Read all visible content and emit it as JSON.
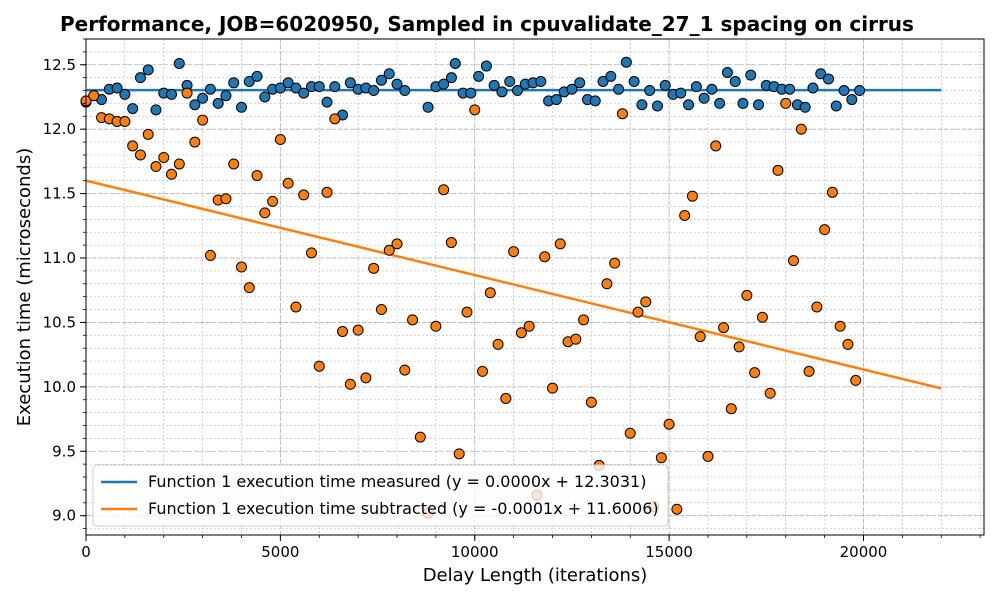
{
  "chart_data": {
    "type": "scatter",
    "title": "Performance, JOB=6020950, Sampled in cpuvalidate_27_1 spacing on cirrus",
    "xlabel": "Delay Length (iterations)",
    "ylabel": "Execution time (microseconds)",
    "xlim": [
      0,
      23100
    ],
    "ylim": [
      8.85,
      12.7
    ],
    "x_ticks": [
      0,
      5000,
      10000,
      15000,
      20000
    ],
    "y_ticks": [
      9.0,
      9.5,
      10.0,
      10.5,
      11.0,
      11.5,
      12.0,
      12.5
    ],
    "grid": true,
    "minor_grid": true,
    "legend_position": "lower-left",
    "series": [
      {
        "name": "Function 1 execution time measured (y = 0.0000x + 12.3031)",
        "color": "#1f77b4",
        "fit": {
          "slope": 0.0,
          "intercept": 12.3031,
          "x_range": [
            0,
            22000
          ]
        },
        "points": [
          [
            0,
            12.21
          ],
          [
            200,
            12.26
          ],
          [
            400,
            12.23
          ],
          [
            600,
            12.31
          ],
          [
            800,
            12.32
          ],
          [
            1000,
            12.27
          ],
          [
            1200,
            12.16
          ],
          [
            1400,
            12.4
          ],
          [
            1600,
            12.46
          ],
          [
            1800,
            12.15
          ],
          [
            2000,
            12.28
          ],
          [
            2200,
            12.27
          ],
          [
            2400,
            12.51
          ],
          [
            2600,
            12.34
          ],
          [
            2800,
            12.19
          ],
          [
            3000,
            12.24
          ],
          [
            3200,
            12.31
          ],
          [
            3400,
            12.2
          ],
          [
            3600,
            12.26
          ],
          [
            3800,
            12.36
          ],
          [
            4000,
            12.17
          ],
          [
            4200,
            12.37
          ],
          [
            4400,
            12.41
          ],
          [
            4600,
            12.25
          ],
          [
            4800,
            12.31
          ],
          [
            5000,
            12.32
          ],
          [
            5200,
            12.36
          ],
          [
            5400,
            12.32
          ],
          [
            5600,
            12.28
          ],
          [
            5800,
            12.33
          ],
          [
            6000,
            12.33
          ],
          [
            6200,
            12.21
          ],
          [
            6400,
            12.33
          ],
          [
            6600,
            12.11
          ],
          [
            6800,
            12.36
          ],
          [
            7000,
            12.31
          ],
          [
            7200,
            12.32
          ],
          [
            7400,
            12.3
          ],
          [
            7600,
            12.38
          ],
          [
            7800,
            12.43
          ],
          [
            8000,
            12.35
          ],
          [
            8200,
            12.3
          ],
          [
            8800,
            12.17
          ],
          [
            9000,
            12.33
          ],
          [
            9200,
            12.35
          ],
          [
            9400,
            12.4
          ],
          [
            9500,
            12.51
          ],
          [
            9700,
            12.28
          ],
          [
            9900,
            12.28
          ],
          [
            10100,
            12.41
          ],
          [
            10300,
            12.49
          ],
          [
            10500,
            12.34
          ],
          [
            10700,
            12.29
          ],
          [
            10900,
            12.37
          ],
          [
            11100,
            12.3
          ],
          [
            11300,
            12.35
          ],
          [
            11500,
            12.36
          ],
          [
            11700,
            12.37
          ],
          [
            11900,
            12.22
          ],
          [
            12100,
            12.23
          ],
          [
            12300,
            12.29
          ],
          [
            12500,
            12.31
          ],
          [
            12700,
            12.36
          ],
          [
            12900,
            12.23
          ],
          [
            13100,
            12.22
          ],
          [
            13300,
            12.37
          ],
          [
            13500,
            12.41
          ],
          [
            13700,
            12.31
          ],
          [
            13900,
            12.52
          ],
          [
            14100,
            12.37
          ],
          [
            14300,
            12.19
          ],
          [
            14500,
            12.3
          ],
          [
            14700,
            12.18
          ],
          [
            14900,
            12.34
          ],
          [
            15100,
            12.27
          ],
          [
            15300,
            12.28
          ],
          [
            15500,
            12.19
          ],
          [
            15700,
            12.33
          ],
          [
            15900,
            12.24
          ],
          [
            16100,
            12.31
          ],
          [
            16300,
            12.2
          ],
          [
            16500,
            12.44
          ],
          [
            16700,
            12.37
          ],
          [
            16900,
            12.2
          ],
          [
            17100,
            12.42
          ],
          [
            17300,
            12.19
          ],
          [
            17500,
            12.34
          ],
          [
            17700,
            12.33
          ],
          [
            17900,
            12.31
          ],
          [
            18100,
            12.31
          ],
          [
            18300,
            12.19
          ],
          [
            18500,
            12.17
          ],
          [
            18700,
            12.32
          ],
          [
            18900,
            12.43
          ],
          [
            19100,
            12.39
          ],
          [
            19300,
            12.18
          ],
          [
            19500,
            12.3
          ],
          [
            19700,
            12.23
          ],
          [
            19900,
            12.3
          ]
        ]
      },
      {
        "name": "Function 1 execution time subtracted (y = -0.0001x + 11.6006)",
        "color": "#ff7f0e",
        "fit": {
          "slope": -7.33e-05,
          "intercept": 11.6006,
          "x_range": [
            0,
            22000
          ]
        },
        "points": [
          [
            0,
            12.22
          ],
          [
            200,
            12.26
          ],
          [
            400,
            12.09
          ],
          [
            600,
            12.08
          ],
          [
            800,
            12.06
          ],
          [
            1000,
            12.06
          ],
          [
            1200,
            11.87
          ],
          [
            1400,
            11.8
          ],
          [
            1600,
            11.96
          ],
          [
            1800,
            11.71
          ],
          [
            2000,
            11.78
          ],
          [
            2200,
            11.65
          ],
          [
            2400,
            11.73
          ],
          [
            2600,
            12.28
          ],
          [
            2800,
            11.9
          ],
          [
            3000,
            12.07
          ],
          [
            3200,
            11.02
          ],
          [
            3400,
            11.45
          ],
          [
            3600,
            11.46
          ],
          [
            3800,
            11.73
          ],
          [
            4000,
            10.93
          ],
          [
            4200,
            10.77
          ],
          [
            4400,
            11.64
          ],
          [
            4600,
            11.35
          ],
          [
            4800,
            11.44
          ],
          [
            5000,
            11.92
          ],
          [
            5200,
            11.58
          ],
          [
            5400,
            10.62
          ],
          [
            5600,
            11.49
          ],
          [
            5800,
            11.04
          ],
          [
            6000,
            10.16
          ],
          [
            6200,
            11.51
          ],
          [
            6400,
            12.08
          ],
          [
            6600,
            10.43
          ],
          [
            6800,
            10.02
          ],
          [
            7000,
            10.44
          ],
          [
            7200,
            10.07
          ],
          [
            7400,
            10.92
          ],
          [
            7600,
            10.6
          ],
          [
            7800,
            11.06
          ],
          [
            8000,
            11.11
          ],
          [
            8200,
            10.13
          ],
          [
            8400,
            10.52
          ],
          [
            8600,
            9.61
          ],
          [
            8800,
            9.02
          ],
          [
            9000,
            10.47
          ],
          [
            9200,
            11.53
          ],
          [
            9400,
            11.12
          ],
          [
            9600,
            9.48
          ],
          [
            9800,
            10.58
          ],
          [
            10000,
            12.15
          ],
          [
            10200,
            10.12
          ],
          [
            10400,
            10.73
          ],
          [
            10600,
            10.33
          ],
          [
            10800,
            9.91
          ],
          [
            11000,
            11.05
          ],
          [
            11200,
            10.42
          ],
          [
            11400,
            10.47
          ],
          [
            11600,
            9.16
          ],
          [
            11800,
            11.01
          ],
          [
            12000,
            9.99
          ],
          [
            12200,
            11.11
          ],
          [
            12400,
            10.35
          ],
          [
            12600,
            10.37
          ],
          [
            12800,
            10.52
          ],
          [
            13000,
            9.88
          ],
          [
            13200,
            9.39
          ],
          [
            13400,
            10.8
          ],
          [
            13600,
            10.96
          ],
          [
            13800,
            12.12
          ],
          [
            14000,
            9.64
          ],
          [
            14200,
            10.58
          ],
          [
            14400,
            10.66
          ],
          [
            14600,
            9.07
          ],
          [
            14800,
            9.45
          ],
          [
            15000,
            9.71
          ],
          [
            15200,
            9.05
          ],
          [
            15400,
            11.33
          ],
          [
            15600,
            11.48
          ],
          [
            15800,
            10.39
          ],
          [
            16000,
            9.46
          ],
          [
            16200,
            11.87
          ],
          [
            16400,
            10.46
          ],
          [
            16600,
            9.83
          ],
          [
            16800,
            10.31
          ],
          [
            17000,
            10.71
          ],
          [
            17200,
            10.11
          ],
          [
            17400,
            10.54
          ],
          [
            17600,
            9.95
          ],
          [
            17800,
            11.68
          ],
          [
            18000,
            12.2
          ],
          [
            18200,
            10.98
          ],
          [
            18400,
            12.0
          ],
          [
            18600,
            10.12
          ],
          [
            18800,
            10.62
          ],
          [
            19000,
            11.22
          ],
          [
            19200,
            11.51
          ],
          [
            19400,
            10.47
          ],
          [
            19600,
            10.33
          ],
          [
            19800,
            10.05
          ]
        ]
      }
    ]
  }
}
